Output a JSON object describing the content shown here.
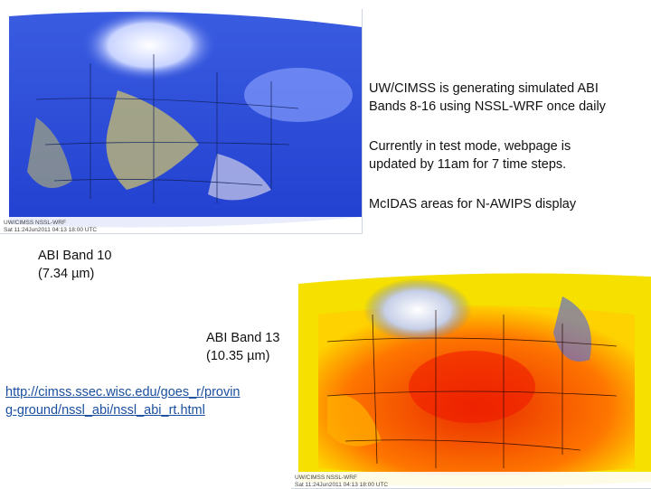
{
  "slide": {
    "description_lines": [
      "UW/CIMSS is generating simulated ABI",
      "Bands 8-16 using NSSL-WRF once daily"
    ],
    "status_lines": [
      "Currently in test mode, webpage is",
      "updated by 11am for 7 time steps."
    ],
    "mcidas_note": "McIDAS areas for N-AWIPS display",
    "band10_lines": [
      "ABI Band 10",
      "(7.34 µm)"
    ],
    "band13_lines": [
      "ABI Band 13",
      "(10.35 µm)"
    ],
    "link_lines": [
      "http://cimss.ssec.wisc.edu/goes_r/provin",
      "g-ground/nssl_abi/nssl_abi_rt.html"
    ]
  },
  "images": {
    "band10": {
      "caption_line1": "UW/CIMSS NSSL-WRF",
      "caption_line2": "Sat 11:24Jun2011 04:13 18:00 UTC",
      "palette": [
        "#1a3fd6",
        "#3f6ae8",
        "#c9c070",
        "#ffffff"
      ]
    },
    "band13": {
      "caption_line1": "UW/CIMSS NSSL-WRF",
      "caption_line2": "Sat 11:24Jun2011 04:13 18:00 UTC",
      "palette": [
        "#f0e200",
        "#ff8a00",
        "#f02000",
        "#ffffff"
      ]
    }
  }
}
